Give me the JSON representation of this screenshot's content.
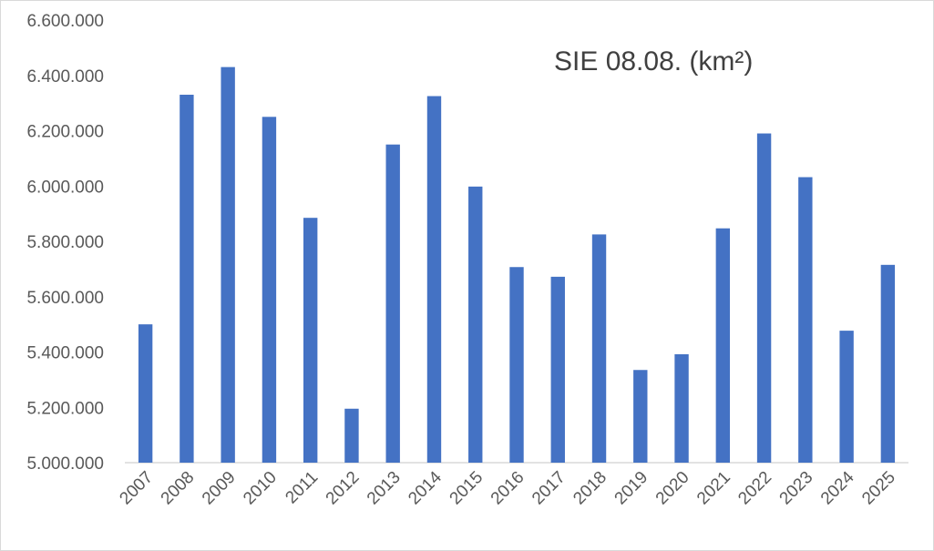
{
  "chart_data": {
    "type": "bar",
    "title": "SIE 08.08. (km²)",
    "xlabel": "",
    "ylabel": "",
    "categories": [
      "2007",
      "2008",
      "2009",
      "2010",
      "2011",
      "2012",
      "2013",
      "2014",
      "2015",
      "2016",
      "2017",
      "2018",
      "2019",
      "2020",
      "2021",
      "2022",
      "2023",
      "2024",
      "2025"
    ],
    "values": [
      5500000,
      6330000,
      6430000,
      6250000,
      5885000,
      5195000,
      6150000,
      6325000,
      5998000,
      5707000,
      5672000,
      5825000,
      5335000,
      5392000,
      5847000,
      6190000,
      6032000,
      5477000,
      5715000
    ],
    "ylim": [
      5000000,
      6600000
    ],
    "yticks": [
      "5.000.000",
      "5.200.000",
      "5.400.000",
      "5.600.000",
      "5.800.000",
      "6.000.000",
      "6.200.000",
      "6.400.000",
      "6.600.000"
    ],
    "grid": false,
    "legend": "none",
    "bar_color": "#4472C4",
    "axis_color": "#d9d9d9",
    "text_color": "#595959"
  }
}
